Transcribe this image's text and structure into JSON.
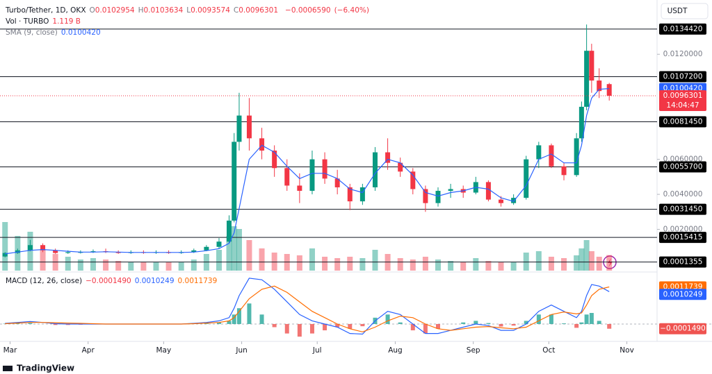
{
  "header": {
    "symbol": "Turbo/Tether, 1D, OKX",
    "ohlc_letters": [
      "O",
      "H",
      "L",
      "C"
    ],
    "change": {
      "value": -0.000659,
      "label": "−0.0006590"
    },
    "change_pct": {
      "value": -6.4,
      "label": "(−6.40%)"
    }
  },
  "currency": "USDT",
  "countdown": "14:04:47",
  "brand": "TradingView",
  "chart_data": {
    "type": "candlestick",
    "x": [
      -2,
      3,
      8,
      13,
      18,
      23,
      28,
      33,
      38,
      43,
      48,
      53,
      58,
      63,
      68,
      73,
      78,
      83,
      87,
      89,
      91,
      95,
      100,
      105,
      110,
      115,
      120,
      125,
      130,
      135,
      140,
      145,
      150,
      155,
      160,
      165,
      170,
      175,
      180,
      185,
      190,
      195,
      200,
      205,
      210,
      215,
      220,
      225,
      227,
      229,
      231,
      234,
      238
    ],
    "xlim": [
      -4,
      257
    ],
    "xticks": [
      {
        "value": 0,
        "label": "Mar"
      },
      {
        "value": 31,
        "label": "Apr"
      },
      {
        "value": 61,
        "label": "May"
      },
      {
        "value": 92,
        "label": "Jun"
      },
      {
        "value": 122,
        "label": "Jul"
      },
      {
        "value": 153,
        "label": "Aug"
      },
      {
        "value": 184,
        "label": "Sep"
      },
      {
        "value": 214,
        "label": "Oct"
      },
      {
        "value": 245,
        "label": "Nov"
      }
    ],
    "ylim": [
      0,
      0.0151
    ],
    "yticks": [
      {
        "value": 0.012,
        "label": "0.0120000"
      },
      {
        "value": 0.006,
        "label": "0.0060000"
      },
      {
        "value": 0.004,
        "label": "0.0040000"
      },
      {
        "value": 0.002,
        "label": "0.0020000"
      }
    ],
    "grid": false,
    "levels": [
      {
        "value": 0.013442,
        "label": "0.0134420"
      },
      {
        "value": 0.01072,
        "label": "0.0107200"
      },
      {
        "value": 0.008145,
        "label": "0.0081450"
      },
      {
        "value": 0.00557,
        "label": "0.0055700"
      },
      {
        "value": 0.003145,
        "label": "0.0031450"
      },
      {
        "value": 0.0015415,
        "label": "0.0015415"
      },
      {
        "value": 0.0001355,
        "label": "0.0001355"
      }
    ],
    "up_color": "#089981",
    "down_color": "#f23645",
    "open": [
      0.00045,
      0.00065,
      0.0008,
      0.0011,
      0.0008,
      0.00065,
      0.0007,
      0.0007,
      0.00075,
      0.0007,
      0.00065,
      0.0007,
      0.00068,
      0.0007,
      0.00065,
      0.0007,
      0.0008,
      0.001,
      0.0013,
      0.0025,
      0.007,
      0.0085,
      0.0072,
      0.0065,
      0.0055,
      0.0045,
      0.0042,
      0.006,
      0.0049,
      0.0044,
      0.0036,
      0.0044,
      0.0064,
      0.0058,
      0.0053,
      0.0043,
      0.0035,
      0.0042,
      0.0043,
      0.0041,
      0.0047,
      0.0037,
      0.0035,
      0.0038,
      0.006,
      0.0068,
      0.0056,
      0.0051,
      0.0072,
      0.009,
      0.0122,
      0.0105,
      0.0102954
    ],
    "high": [
      0.0007,
      0.0009,
      0.0014,
      0.0012,
      0.0009,
      0.0008,
      0.0008,
      0.00085,
      0.0009,
      0.0008,
      0.0008,
      0.0008,
      0.0008,
      0.0008,
      0.0008,
      0.0009,
      0.0011,
      0.0015,
      0.0028,
      0.0075,
      0.0098,
      0.0095,
      0.0078,
      0.0068,
      0.006,
      0.0052,
      0.0065,
      0.0064,
      0.0054,
      0.0046,
      0.0046,
      0.0067,
      0.0072,
      0.0061,
      0.0055,
      0.0045,
      0.0044,
      0.0046,
      0.0045,
      0.005,
      0.0048,
      0.0039,
      0.004,
      0.0062,
      0.007,
      0.0069,
      0.0058,
      0.0075,
      0.0093,
      0.0137,
      0.0126,
      0.0112,
      0.0103634
    ],
    "low": [
      0.0004,
      0.0006,
      0.00075,
      0.0007,
      0.0006,
      0.0006,
      0.00062,
      0.00065,
      0.00065,
      0.0006,
      0.0006,
      0.0006,
      0.0006,
      0.0006,
      0.0006,
      0.00065,
      0.00075,
      0.0009,
      0.0012,
      0.0024,
      0.0065,
      0.0065,
      0.006,
      0.005,
      0.0042,
      0.0035,
      0.004,
      0.0046,
      0.004,
      0.0031,
      0.0034,
      0.0042,
      0.0054,
      0.005,
      0.004,
      0.003,
      0.0033,
      0.0038,
      0.0038,
      0.004,
      0.0036,
      0.0033,
      0.0034,
      0.0037,
      0.0055,
      0.0055,
      0.0048,
      0.005,
      0.007,
      0.0088,
      0.0098,
      0.0095,
      0.0093574
    ],
    "close": [
      0.00065,
      0.0008,
      0.0011,
      0.0008,
      0.00065,
      0.0007,
      0.0007,
      0.00075,
      0.0007,
      0.00065,
      0.0007,
      0.00068,
      0.0007,
      0.00065,
      0.0007,
      0.0008,
      0.001,
      0.0013,
      0.0025,
      0.007,
      0.0085,
      0.0072,
      0.0065,
      0.0055,
      0.0045,
      0.0042,
      0.006,
      0.0049,
      0.0044,
      0.0036,
      0.0044,
      0.0064,
      0.0058,
      0.0053,
      0.0043,
      0.0035,
      0.0042,
      0.0043,
      0.0041,
      0.0047,
      0.0037,
      0.0035,
      0.0038,
      0.006,
      0.0068,
      0.0056,
      0.0051,
      0.0072,
      0.009,
      0.0122,
      0.0105,
      0.0099,
      0.0096301
    ],
    "sma": {
      "name": "SMA (9, close)",
      "color": "#2962ff",
      "last_label": "0.0100420",
      "values": [
        0.0006,
        0.0007,
        0.0008,
        0.00085,
        0.0008,
        0.00075,
        0.0007,
        0.0007,
        0.00072,
        0.0007,
        0.00068,
        0.00068,
        0.00068,
        0.00068,
        0.00068,
        0.0007,
        0.00078,
        0.0009,
        0.0012,
        0.0018,
        0.0032,
        0.006,
        0.0068,
        0.0064,
        0.0056,
        0.0049,
        0.0052,
        0.0052,
        0.0049,
        0.0043,
        0.0041,
        0.0052,
        0.006,
        0.0058,
        0.0051,
        0.0041,
        0.0039,
        0.0041,
        0.0042,
        0.0044,
        0.0043,
        0.0038,
        0.0036,
        0.0045,
        0.006,
        0.0063,
        0.0058,
        0.0058,
        0.0068,
        0.0085,
        0.0095,
        0.01,
        0.010042
      ]
    },
    "volume": {
      "name": "Vol · TURBO",
      "last_label": "1.119 B",
      "ylim": [
        0,
        5
      ],
      "values": [
        3.5,
        2.5,
        2.8,
        1.5,
        1.2,
        1.0,
        0.8,
        0.9,
        0.8,
        0.7,
        0.6,
        0.6,
        0.6,
        0.6,
        0.6,
        0.8,
        1.2,
        1.5,
        2.5,
        3.2,
        3.0,
        2.2,
        1.6,
        1.3,
        1.2,
        1.1,
        1.6,
        1.0,
        0.9,
        1.0,
        0.9,
        1.5,
        1.2,
        0.9,
        0.8,
        1.0,
        0.8,
        0.7,
        0.6,
        0.9,
        0.7,
        0.6,
        0.6,
        1.3,
        1.4,
        1.0,
        0.9,
        1.1,
        1.6,
        2.2,
        1.4,
        1.0,
        1.119
      ]
    },
    "macd": {
      "name": "MACD (12, 26, close)",
      "ylim": [
        -0.00055,
        0.00158
      ],
      "macd": {
        "color": "#2962ff",
        "last_label": "0.0010249",
        "values": [
          2e-05,
          5e-05,
          8e-05,
          5e-05,
          1e-05,
          0,
          0,
          0,
          0,
          0,
          0,
          0,
          0,
          0,
          0,
          2e-05,
          5e-05,
          0.0001,
          0.0002,
          0.0005,
          0.0009,
          0.00145,
          0.0014,
          0.0011,
          0.0007,
          0.0003,
          0.0001,
          0,
          -0.0001,
          -0.0003,
          -0.00032,
          0.0001,
          0.0004,
          0.0003,
          0,
          -0.0003,
          -0.0003,
          -0.0002,
          -0.0001,
          0,
          -5e-05,
          -0.0002,
          -0.0002,
          0,
          0.0004,
          0.0006,
          0.0004,
          0.0002,
          0.0004,
          0.0009,
          0.00125,
          0.0012,
          0.0010249
        ]
      },
      "signal": {
        "color": "#ff6d00",
        "last_label": "0.0011739",
        "values": [
          1e-05,
          3e-05,
          5e-05,
          5e-05,
          4e-05,
          3e-05,
          2e-05,
          1e-05,
          0,
          0,
          0,
          0,
          0,
          0,
          0,
          1e-05,
          3e-05,
          5e-05,
          0.0001,
          0.0002,
          0.0004,
          0.0008,
          0.0011,
          0.0012,
          0.001,
          0.0007,
          0.0004,
          0.0002,
          0,
          -0.00015,
          -0.00025,
          -0.0001,
          0.0001,
          0.00025,
          0.0002,
          0,
          -0.00015,
          -0.0002,
          -0.00015,
          -0.0001,
          -8e-05,
          -0.00012,
          -0.00015,
          -0.0001,
          0.0001,
          0.0003,
          0.00038,
          0.00032,
          0.00035,
          0.0006,
          0.0009,
          0.0011,
          0.0011739
        ]
      },
      "histogram": {
        "last_label": "−0.0001490",
        "up_color": "#26a69a",
        "down_color": "#ef5350",
        "values": [
          1e-05,
          2e-05,
          3e-05,
          0,
          -3e-05,
          -3e-05,
          -2e-05,
          -1e-05,
          0,
          0,
          0,
          0,
          0,
          0,
          0,
          1e-05,
          2e-05,
          5e-05,
          0.0001,
          0.0003,
          0.0005,
          0.00065,
          0.0003,
          -0.0001,
          -0.0003,
          -0.0004,
          -0.0003,
          -0.0002,
          -0.0001,
          -0.00015,
          -7e-05,
          0.0002,
          0.0003,
          5e-05,
          -0.0002,
          -0.0003,
          -0.00015,
          0,
          5e-05,
          0.0001,
          3e-05,
          -8e-05,
          -5e-05,
          0.0001,
          0.0003,
          0.0003,
          2e-05,
          -0.00012,
          5e-05,
          0.0003,
          0.00035,
          0.0001,
          -0.000149
        ]
      }
    }
  }
}
